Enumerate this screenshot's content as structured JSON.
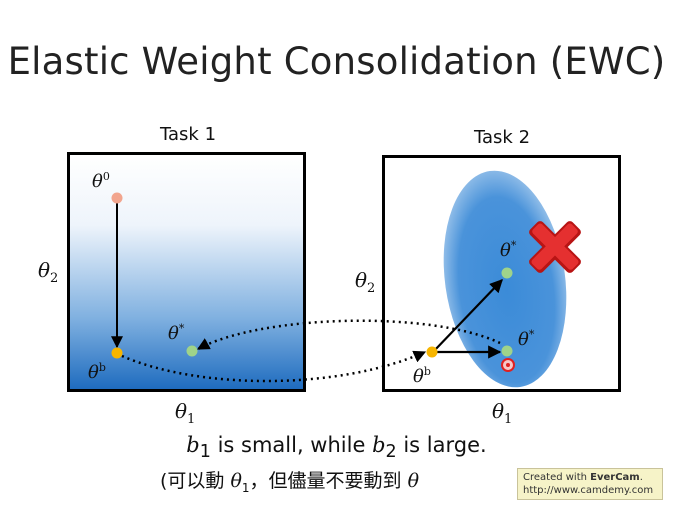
{
  "title": "Elastic Weight Consolidation (EWC)",
  "tasks": [
    {
      "label": "Task 1",
      "xaxis": "θ",
      "xsub": "1",
      "yaxis": "θ",
      "ysub": "2"
    },
    {
      "label": "Task 2",
      "xaxis": "θ",
      "xsub": "1",
      "yaxis": "θ",
      "ysub": "2"
    }
  ],
  "points": {
    "theta0": {
      "sym": "θ",
      "sup": "0"
    },
    "thetab": {
      "sym": "θ",
      "sup": "b"
    },
    "thetastar": {
      "sym": "θ",
      "sup": "*"
    }
  },
  "colors": {
    "theta0": "#f2a58e",
    "thetab": "#f7b500",
    "thetastar": "#9fd38a",
    "cross": "#e02020",
    "blob": "#3b8bd8"
  },
  "caption": {
    "b1": "b",
    "b1_sub": "1",
    "mid": " is small, while ",
    "b2": "b",
    "b2_sub": "2",
    "end": " is large."
  },
  "note": {
    "open": "(可以動 ",
    "sym1": "θ",
    "sub1": "1",
    "middle": "，但儘量不要動到 ",
    "sym2": "θ"
  },
  "watermark": {
    "line1_prefix": "Created with ",
    "brand": "EverCam",
    "line1_suffix": ".",
    "line2": "http://www.camdemy.com"
  }
}
